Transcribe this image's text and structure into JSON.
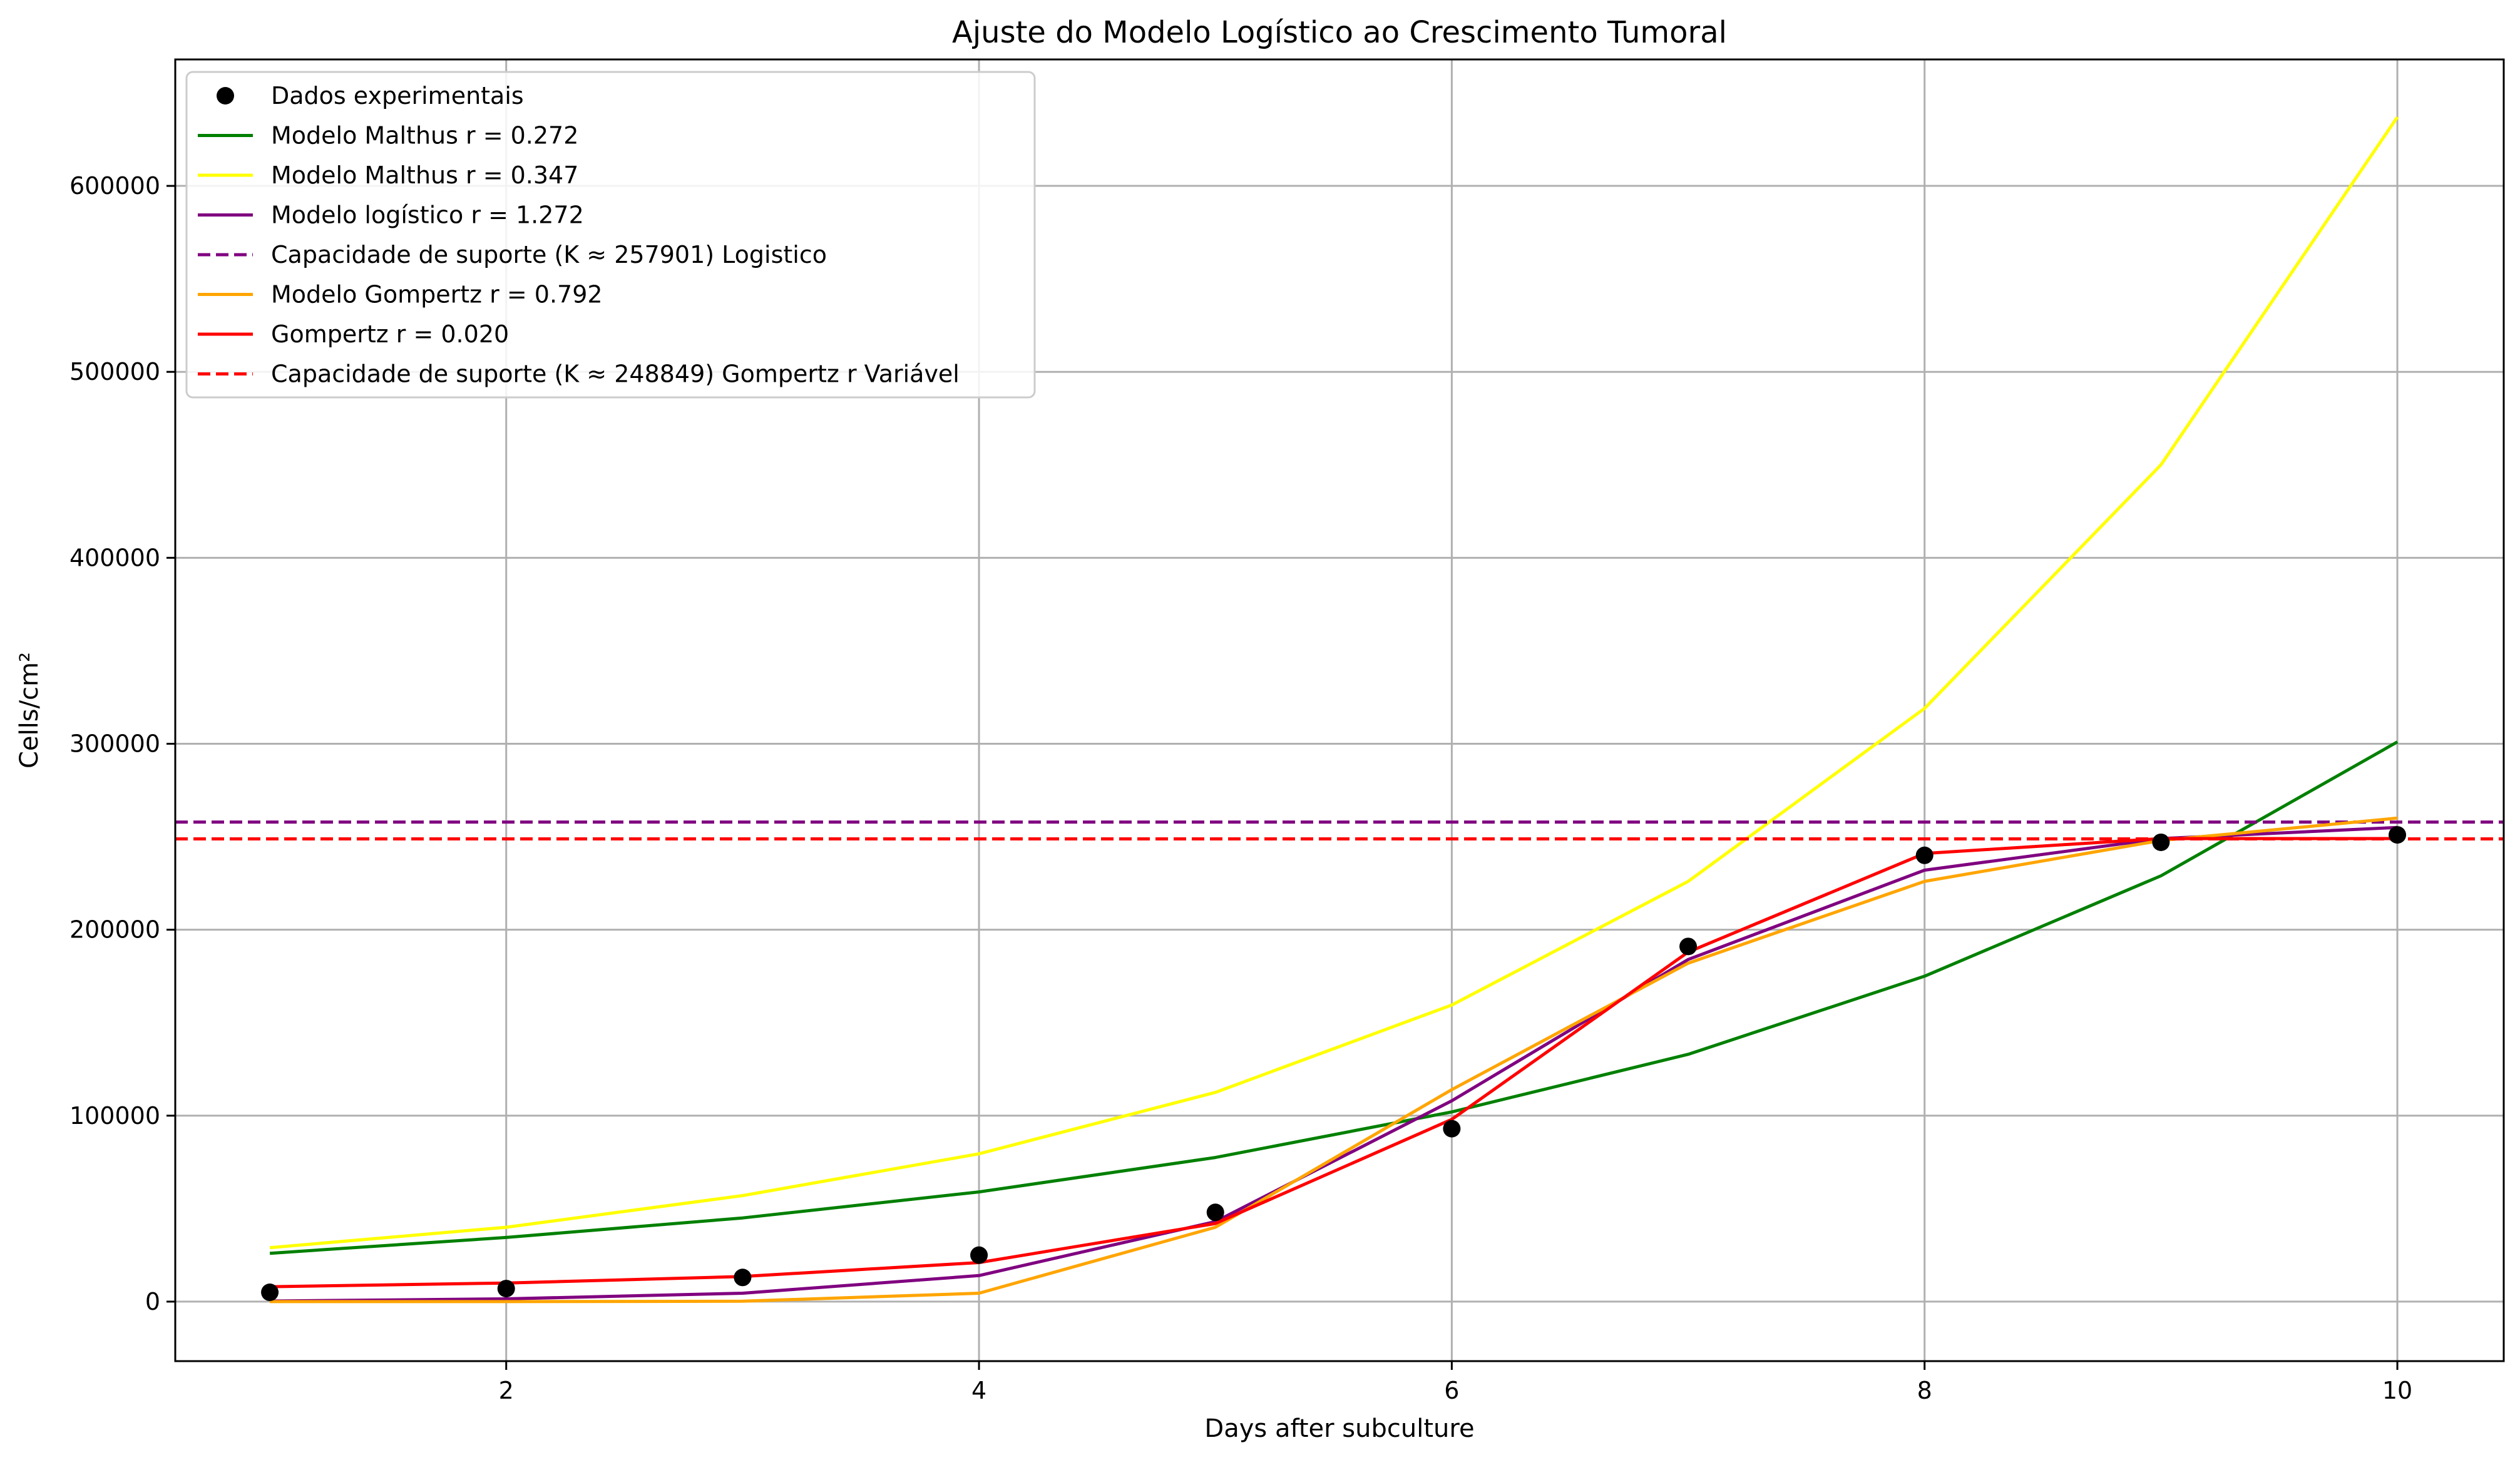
{
  "chart_data": {
    "type": "line",
    "title": "Ajuste do Modelo Logístico ao Crescimento Tumoral",
    "xlabel": "Days after subculture",
    "ylabel": "Cells/cm²",
    "xlim": [
      0.6,
      10.45
    ],
    "ylim": [
      -32000,
      668000
    ],
    "xticks": [
      2,
      4,
      6,
      8,
      10
    ],
    "yticks": [
      0,
      100000,
      200000,
      300000,
      400000,
      500000,
      600000
    ],
    "grid": true,
    "legend_position": "top-left",
    "scatter": {
      "name": "Dados experimentais",
      "color": "#000000",
      "x": [
        1,
        2,
        3,
        4,
        5,
        6,
        7,
        8,
        9,
        10
      ],
      "y": [
        5000,
        7000,
        13000,
        25000,
        48000,
        93000,
        191000,
        240000,
        247000,
        251000
      ]
    },
    "series": [
      {
        "name": "Modelo Malthus r = 0.272",
        "color": "#008000",
        "style": "solid",
        "x": [
          1,
          2,
          3,
          4,
          5,
          6,
          7,
          8,
          9,
          10
        ],
        "y": [
          26000,
          34500,
          45000,
          59000,
          77500,
          102000,
          133000,
          175000,
          229000,
          301000
        ]
      },
      {
        "name": "Modelo Malthus r = 0.347",
        "color": "#ffff00",
        "style": "solid",
        "x": [
          1,
          2,
          3,
          4,
          5,
          6,
          7,
          8,
          9,
          10
        ],
        "y": [
          29000,
          40000,
          57000,
          79500,
          112500,
          159500,
          226000,
          319000,
          450000,
          637000
        ]
      },
      {
        "name": "Modelo logístico r = 1.272",
        "color": "#800080",
        "style": "solid",
        "x": [
          1,
          2,
          3,
          4,
          5,
          6,
          7,
          8,
          9,
          10
        ],
        "y": [
          300,
          1500,
          4500,
          14000,
          43000,
          108000,
          184000,
          232000,
          249000,
          255000
        ]
      },
      {
        "name": "Capacidade de suporte (K ≈ 257901) Logistico",
        "color": "#800080",
        "style": "dashed",
        "x": [
          0.6,
          10.45
        ],
        "y": [
          257901,
          257901
        ]
      },
      {
        "name": "Modelo Gompertz r = 0.792",
        "color": "#ffa500",
        "style": "solid",
        "x": [
          1,
          2,
          3,
          4,
          5,
          6,
          7,
          8,
          9,
          10
        ],
        "y": [
          0,
          0,
          200,
          4500,
          40000,
          114000,
          182000,
          226000,
          248000,
          260000
        ]
      },
      {
        "name": "Gompertz r = 0.020",
        "color": "#ff0000",
        "style": "solid",
        "x": [
          1,
          2,
          3,
          4,
          5,
          6,
          7,
          8,
          9,
          10
        ],
        "y": [
          8000,
          10000,
          13500,
          21000,
          42000,
          98000,
          188000,
          241000,
          249000,
          249000
        ]
      },
      {
        "name": "Capacidade de suporte (K ≈ 248849) Gompertz r Variável",
        "color": "#ff0000",
        "style": "dashed",
        "x": [
          0.6,
          10.45
        ],
        "y": [
          248849,
          248849
        ]
      }
    ]
  }
}
